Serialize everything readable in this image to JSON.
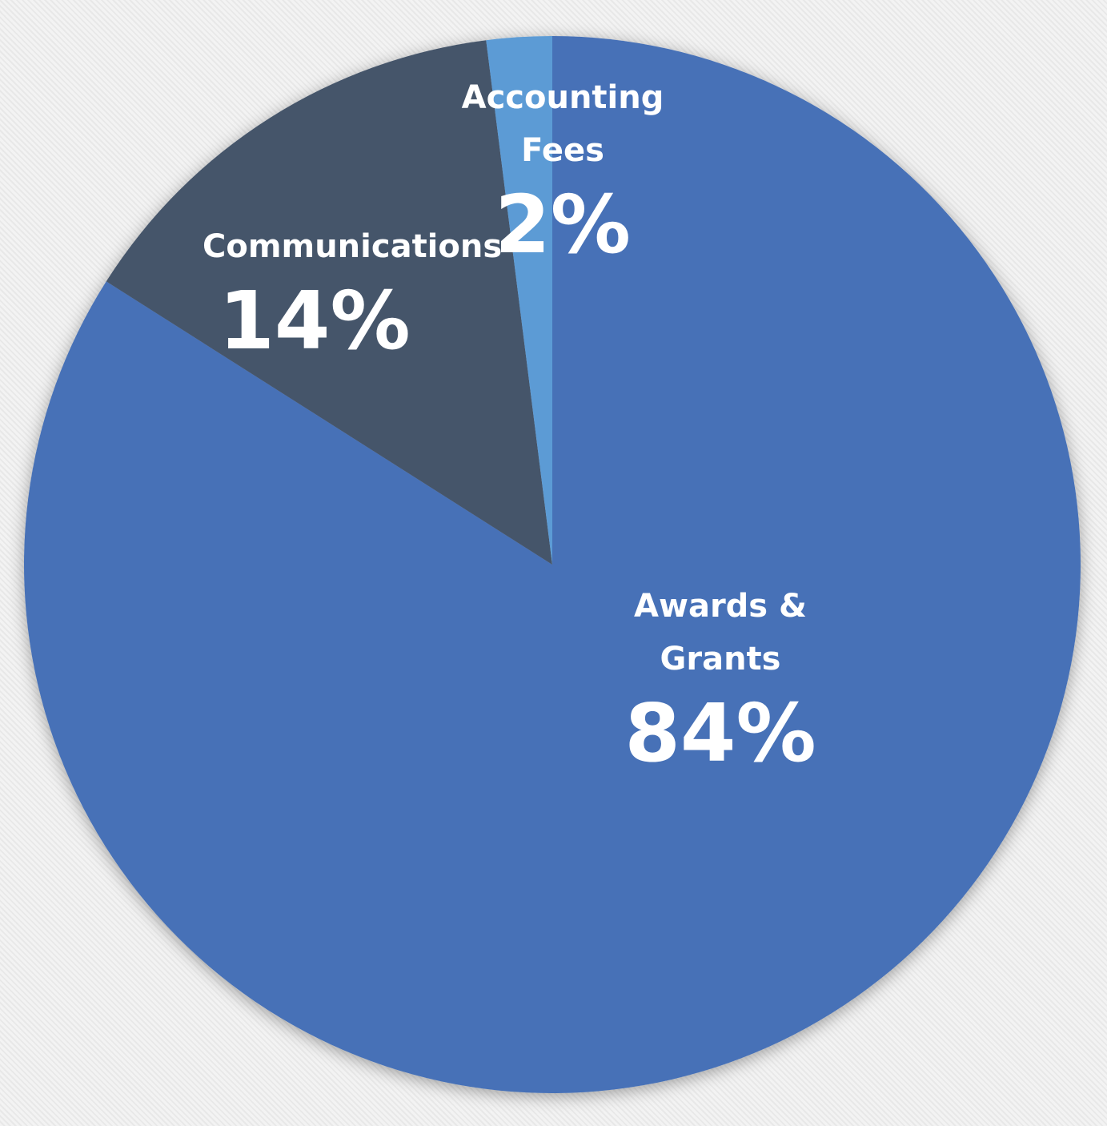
{
  "chart_data": {
    "type": "pie",
    "categories": [
      "Awards & Grants",
      "Communications",
      "Accounting Fees"
    ],
    "values": [
      84,
      14,
      2
    ],
    "value_labels": [
      "84%",
      "14%",
      "2%"
    ],
    "colors": [
      "#4671b7",
      "#44546a",
      "#5b9bd5"
    ]
  }
}
